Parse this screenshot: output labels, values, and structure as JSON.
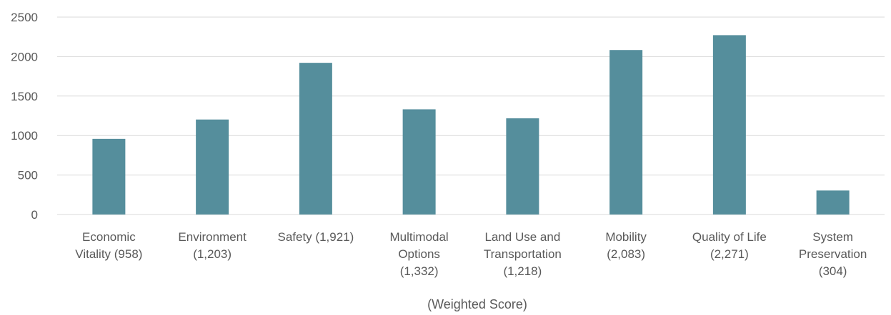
{
  "chart_data": {
    "type": "bar",
    "categories": [
      [
        "Economic",
        "Vitality (958)"
      ],
      [
        "Environment",
        "(1,203)"
      ],
      [
        "Safety (1,921)"
      ],
      [
        "Multimodal",
        "Options",
        "(1,332)"
      ],
      [
        "Land Use and",
        "Transportation",
        "(1,218)"
      ],
      [
        "Mobility",
        "(2,083)"
      ],
      [
        "Quality of Life",
        "(2,271)"
      ],
      [
        "System",
        "Preservation",
        "(304)"
      ]
    ],
    "values": [
      958,
      1203,
      1921,
      1332,
      1218,
      2083,
      2271,
      304
    ],
    "xlabel": "(Weighted Score)",
    "ylim": [
      0,
      2500
    ],
    "yticks": [
      0,
      500,
      1000,
      1500,
      2000,
      2500
    ],
    "grid": true,
    "bar_color": "#558e9c"
  }
}
